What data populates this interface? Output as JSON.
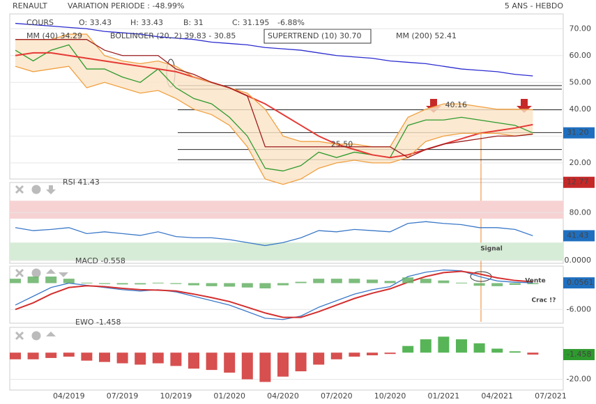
{
  "header": {
    "symbol": "RENAULT",
    "variation": "VARIATION PERIODE : -48.99%",
    "period": "5 ANS - HEBDO",
    "quote": [
      "O: 33.43",
      "H: 33.43",
      "B: 31",
      "C: 31.195",
      "-6.88%"
    ]
  },
  "chart_data": [
    {
      "type": "line",
      "categories": [
        null,
        null,
        null,
        "04/2019",
        null,
        null,
        "07/2019",
        null,
        null,
        "10/2019",
        null,
        null,
        "01/2020",
        null,
        null,
        "04/2020",
        null,
        null,
        "07/2020",
        null,
        null,
        "10/2020",
        null,
        null,
        "01/2021",
        null,
        null,
        "04/2021",
        null,
        null,
        "07/2021"
      ],
      "ylim": [
        14,
        75
      ],
      "yticks": [
        {
          "value": 70,
          "label": "70.00"
        },
        {
          "value": 60,
          "label": "60.00"
        },
        {
          "value": 50,
          "label": "50.00"
        },
        {
          "value": 40,
          "label": "40.00"
        },
        {
          "value": 30,
          "label": "30.00"
        },
        {
          "value": 20,
          "label": "20.00"
        }
      ],
      "series": [
        {
          "name": "COURS",
          "color": "#2e9a2e",
          "values": [
            62,
            58,
            62,
            64,
            55,
            55,
            52,
            50,
            55,
            48,
            44,
            42,
            37,
            30,
            18,
            17,
            19,
            24,
            22,
            24,
            23,
            22,
            34,
            36,
            36,
            37,
            36,
            35,
            34,
            31.2,
            null
          ]
        },
        {
          "name": "MM (40) 34.29",
          "color": "#e53935",
          "values": [
            60,
            61,
            61,
            60,
            59,
            58,
            57,
            56,
            55,
            54,
            52,
            50,
            48,
            45,
            42,
            38,
            34,
            30,
            27,
            25,
            23,
            22,
            23,
            25,
            27,
            29,
            31,
            32,
            33,
            34.29,
            null
          ]
        },
        {
          "name": "BOLLINGER (20, 2) 39.83 - 30.85",
          "color": "#f0a040",
          "values": [
            66,
            66,
            66,
            68,
            68,
            60,
            58,
            57,
            58,
            56,
            52,
            50,
            48,
            46,
            40,
            30,
            28,
            28,
            27,
            27,
            26,
            26,
            37,
            40,
            42,
            42,
            41,
            40,
            40,
            39.83,
            null
          ]
        },
        {
          "name": "",
          "color": "#f0a040",
          "values": [
            56,
            54,
            55,
            56,
            48,
            50,
            48,
            46,
            47,
            44,
            40,
            38,
            34,
            26,
            14,
            12,
            14,
            18,
            20,
            21,
            20,
            20,
            22,
            28,
            30,
            31,
            31,
            31,
            30,
            30.85,
            null
          ]
        },
        {
          "name": "SUPERTREND (10) 30.70",
          "color": "#9b1c1c",
          "values": [
            66,
            66,
            66,
            66,
            66,
            62,
            60,
            60,
            60,
            55,
            53,
            50,
            48,
            45,
            26,
            26,
            26,
            26,
            26,
            26,
            26,
            26,
            22,
            25,
            27,
            28,
            29,
            30,
            30,
            30.7,
            null
          ]
        },
        {
          "name": "MM (200) 52.41",
          "color": "#2b2bd0",
          "values": [
            72,
            71.5,
            71,
            70.5,
            70,
            69,
            68.5,
            68,
            67,
            66.5,
            66,
            65,
            64.5,
            64,
            63,
            62.5,
            62,
            61,
            60,
            59.5,
            59,
            58,
            57.5,
            57,
            56,
            55,
            54.5,
            54,
            53,
            52.41,
            null
          ]
        }
      ],
      "levels": [
        48.8,
        47.5,
        39.8,
        31.3,
        25,
        21.2
      ],
      "annotations": [
        {
          "x": 24.7,
          "y": 41.5,
          "text": "40.16"
        },
        {
          "x": 18.3,
          "y": 26.8,
          "text": "25.50"
        }
      ],
      "value_boxes": [
        {
          "value": 31.2,
          "label": "31.20",
          "color": "#1f6fc0"
        },
        {
          "value": 12.77,
          "label": "12.77",
          "color": "#c62828"
        }
      ]
    },
    {
      "type": "line",
      "title": "RSI 41.43",
      "ylim": [
        0,
        120
      ],
      "yticks": [
        {
          "value": 80,
          "label": "80.00"
        },
        {
          "value": 0,
          "label": "0.0000"
        }
      ],
      "zones": [
        {
          "from": 70,
          "to": 100,
          "color": "#f7d2d2"
        },
        {
          "from": 0,
          "to": 30,
          "color": "#d7ecd7"
        }
      ],
      "series": [
        {
          "name": "RSI",
          "color": "#3a78c8",
          "values": [
            55,
            50,
            52,
            55,
            45,
            48,
            45,
            42,
            48,
            40,
            38,
            38,
            35,
            30,
            25,
            30,
            38,
            50,
            48,
            52,
            50,
            48,
            62,
            65,
            62,
            60,
            55,
            55,
            52,
            41.43,
            null
          ]
        }
      ],
      "value_boxes": [
        {
          "value": 41.43,
          "label": "41.43",
          "color": "#1f6fc0"
        }
      ]
    },
    {
      "type": "line",
      "title": "MACD -0.558",
      "ylim": [
        -8.5,
        4.2
      ],
      "yticks": [
        {
          "value": -6,
          "label": "-6.000"
        }
      ],
      "series": [
        {
          "name": "MACD",
          "color": "#3a78c8",
          "values": [
            -5,
            -3,
            -1,
            0,
            -0.5,
            -1,
            -1.5,
            -1.8,
            -1.5,
            -2,
            -3,
            -4,
            -5,
            -6.5,
            -8,
            -8.3,
            -7.5,
            -5.5,
            -4,
            -2.5,
            -1.5,
            -0.8,
            1.5,
            2.5,
            3,
            2.8,
            1.5,
            0.5,
            0.2,
            0.06,
            null
          ]
        },
        {
          "name": "Signal",
          "color": "#d32f2f",
          "values": [
            -6,
            -4.5,
            -2.5,
            -1,
            -0.6,
            -0.8,
            -1.2,
            -1.5,
            -1.6,
            -1.8,
            -2.5,
            -3.3,
            -4.2,
            -5.5,
            -6.8,
            -7.8,
            -7.8,
            -6.5,
            -5,
            -3.5,
            -2.3,
            -1.3,
            0.2,
            1.5,
            2.4,
            2.7,
            2.1,
            1.2,
            0.6,
            0.3,
            null
          ]
        },
        {
          "name": "Histogramme",
          "type": "bar",
          "color": "#66b266",
          "values": [
            1,
            1.5,
            1.5,
            1,
            0.1,
            -0.2,
            -0.3,
            -0.3,
            0.1,
            -0.2,
            -0.5,
            -0.7,
            -0.8,
            -1,
            -1.2,
            -0.5,
            0.3,
            1,
            1,
            1,
            0.8,
            0.5,
            1.3,
            1,
            0.6,
            0.1,
            -0.6,
            -0.7,
            -0.4,
            -0.24,
            null
          ]
        }
      ],
      "notes": [
        "Signal",
        "Vente",
        "Crac !?"
      ],
      "value_boxes": [
        {
          "value": 0.0561,
          "label": "0.0561",
          "color": "#1f6fc0"
        }
      ]
    },
    {
      "type": "bar",
      "title": "EWO -1.458",
      "ylim": [
        -26,
        20
      ],
      "yticks": [
        {
          "value": -20,
          "label": "-20.00"
        }
      ],
      "colors": {
        "up": "#39a839",
        "down": "#d03030"
      },
      "series": [
        {
          "name": "EWO",
          "values": [
            -5,
            -5,
            -4,
            -3,
            -6,
            -7,
            -8,
            -9,
            -8,
            -10,
            -12,
            -13,
            -15,
            -20,
            -22,
            -18,
            -14,
            -9,
            -5,
            -3,
            -2,
            -1,
            5,
            10,
            12,
            10,
            7,
            3,
            1,
            -1.458,
            null
          ]
        }
      ],
      "value_boxes": [
        {
          "value": -1.458,
          "label": "-1.458",
          "color": "#2e9a2e"
        }
      ]
    }
  ]
}
